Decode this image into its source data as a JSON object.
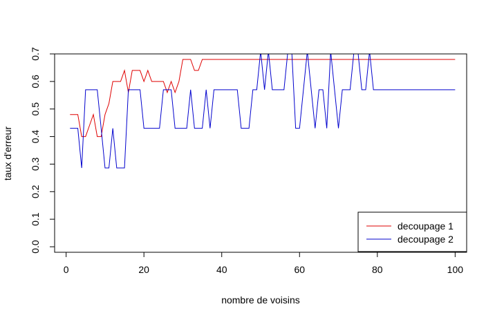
{
  "chart_data": {
    "type": "line",
    "title": "",
    "xlabel": "nombre de voisins",
    "ylabel": "taux d'erreur",
    "xlim": [
      -2.96,
      102.96
    ],
    "ylim": [
      -0.02,
      0.7
    ],
    "xticks": [
      0,
      20,
      40,
      60,
      80,
      100
    ],
    "xtick_labels": [
      "0",
      "20",
      "40",
      "60",
      "80",
      "100"
    ],
    "yticks": [
      0.0,
      0.1,
      0.2,
      0.3,
      0.4,
      0.5,
      0.6,
      0.7
    ],
    "ytick_labels": [
      "0.0",
      "0.1",
      "0.2",
      "0.3",
      "0.4",
      "0.5",
      "0.6",
      "0.7"
    ],
    "legend_position": "bottom-right",
    "series": [
      {
        "name": "decoupage 1",
        "color": "#DF0000",
        "x": [
          1,
          2,
          3,
          4,
          5,
          6,
          7,
          8,
          9,
          10,
          11,
          12,
          13,
          14,
          15,
          16,
          17,
          18,
          19,
          20,
          21,
          22,
          23,
          24,
          25,
          26,
          27,
          28,
          29,
          30,
          31,
          32,
          33,
          34,
          35,
          36,
          100
        ],
        "values": [
          0.48,
          0.48,
          0.48,
          0.4,
          0.4,
          0.44,
          0.48,
          0.4,
          0.4,
          0.48,
          0.52,
          0.6,
          0.6,
          0.6,
          0.64,
          0.56,
          0.64,
          0.64,
          0.64,
          0.6,
          0.64,
          0.6,
          0.6,
          0.6,
          0.6,
          0.56,
          0.6,
          0.56,
          0.6,
          0.68,
          0.68,
          0.68,
          0.64,
          0.64,
          0.68,
          0.68,
          0.68
        ]
      },
      {
        "name": "decoupage 2",
        "color": "#0000CD",
        "x": [
          1,
          2,
          3,
          4,
          5,
          6,
          7,
          8,
          9,
          10,
          11,
          12,
          13,
          14,
          15,
          16,
          17,
          18,
          19,
          20,
          21,
          22,
          23,
          24,
          25,
          26,
          27,
          28,
          29,
          30,
          31,
          32,
          33,
          34,
          35,
          36,
          37,
          38,
          39,
          40,
          41,
          42,
          43,
          44,
          45,
          46,
          47,
          48,
          49,
          50,
          51,
          52,
          53,
          54,
          55,
          56,
          57,
          58,
          59,
          60,
          61,
          62,
          63,
          64,
          65,
          66,
          67,
          68,
          69,
          70,
          71,
          72,
          73,
          74,
          75,
          76,
          77,
          78,
          79,
          100
        ],
        "values": [
          0.43,
          0.43,
          0.43,
          0.286,
          0.57,
          0.57,
          0.57,
          0.57,
          0.43,
          0.286,
          0.286,
          0.43,
          0.286,
          0.286,
          0.286,
          0.57,
          0.57,
          0.57,
          0.57,
          0.43,
          0.43,
          0.43,
          0.43,
          0.43,
          0.57,
          0.57,
          0.57,
          0.43,
          0.43,
          0.43,
          0.43,
          0.57,
          0.43,
          0.43,
          0.43,
          0.57,
          0.43,
          0.57,
          0.57,
          0.57,
          0.57,
          0.57,
          0.57,
          0.57,
          0.43,
          0.43,
          0.43,
          0.57,
          0.57,
          0.71,
          0.57,
          0.71,
          0.57,
          0.57,
          0.57,
          0.57,
          0.71,
          0.71,
          0.43,
          0.43,
          0.57,
          0.71,
          0.57,
          0.43,
          0.57,
          0.57,
          0.43,
          0.71,
          0.57,
          0.43,
          0.57,
          0.57,
          0.57,
          0.71,
          0.71,
          0.57,
          0.57,
          0.71,
          0.57,
          0.57
        ]
      }
    ]
  }
}
